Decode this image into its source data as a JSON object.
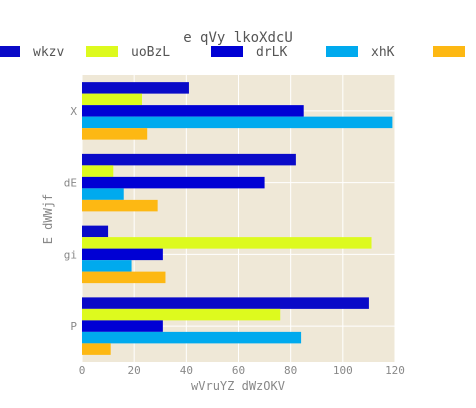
{
  "chart_data": {
    "type": "bar",
    "orientation": "horizontal",
    "title": "e qVy lkoXdcU",
    "xlabel": "wVruYZ dWzOKV",
    "ylabel": "E dWWjf",
    "categories": [
      "X",
      "dE",
      "gi",
      "P"
    ],
    "xlim": [
      0,
      120
    ],
    "xticks": [
      0,
      20,
      40,
      60,
      80,
      100,
      120
    ],
    "grid": true,
    "legend_position": "top",
    "series": [
      {
        "name": "wkzv",
        "color": "#0a0ac8",
        "values": [
          41,
          82,
          10,
          110
        ]
      },
      {
        "name": "uoBzL",
        "color": "#ddfa1e",
        "values": [
          23,
          12,
          111,
          76
        ]
      },
      {
        "name": "drLK",
        "color": "#0000d4",
        "values": [
          85,
          70,
          31,
          31
        ]
      },
      {
        "name": "xhK",
        "color": "#00aaee",
        "values": [
          119,
          16,
          19,
          84
        ]
      },
      {
        "name": "",
        "color": "#fdb813",
        "values": [
          25,
          29,
          32,
          11
        ]
      }
    ]
  }
}
